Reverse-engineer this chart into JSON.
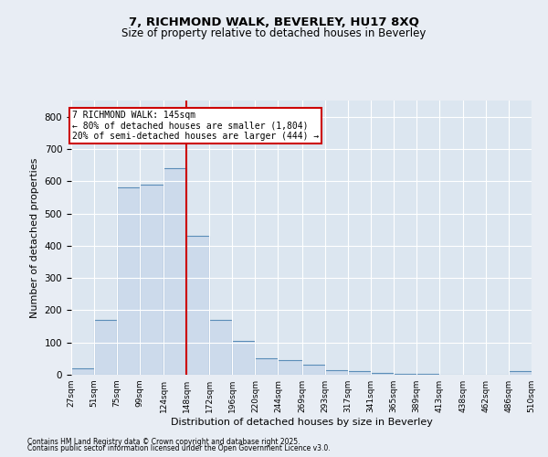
{
  "title1": "7, RICHMOND WALK, BEVERLEY, HU17 8XQ",
  "title2": "Size of property relative to detached houses in Beverley",
  "xlabel": "Distribution of detached houses by size in Beverley",
  "ylabel": "Number of detached properties",
  "bar_color": "#ccdaeb",
  "bar_edge_color": "#5b8db8",
  "background_color": "#e8edf4",
  "plot_bg_color": "#dce6f0",
  "annotation_line_color": "#cc0000",
  "bins": [
    27,
    51,
    75,
    99,
    124,
    148,
    172,
    196,
    220,
    244,
    269,
    293,
    317,
    341,
    365,
    389,
    413,
    438,
    462,
    486,
    510
  ],
  "bin_labels": [
    "27sqm",
    "51sqm",
    "75sqm",
    "99sqm",
    "124sqm",
    "148sqm",
    "172sqm",
    "196sqm",
    "220sqm",
    "244sqm",
    "269sqm",
    "293sqm",
    "317sqm",
    "341sqm",
    "365sqm",
    "389sqm",
    "413sqm",
    "438sqm",
    "462sqm",
    "486sqm",
    "510sqm"
  ],
  "values": [
    20,
    170,
    580,
    590,
    640,
    430,
    170,
    105,
    50,
    45,
    30,
    15,
    10,
    5,
    3,
    2,
    1,
    0,
    0,
    10
  ],
  "vline_x": 148,
  "property_label": "7 RICHMOND WALK: 145sqm",
  "annotation_line1": "← 80% of detached houses are smaller (1,804)",
  "annotation_line2": "20% of semi-detached houses are larger (444) →",
  "ylim": [
    0,
    850
  ],
  "yticks": [
    0,
    100,
    200,
    300,
    400,
    500,
    600,
    700,
    800
  ],
  "footnote1": "Contains HM Land Registry data © Crown copyright and database right 2025.",
  "footnote2": "Contains public sector information licensed under the Open Government Licence v3.0."
}
